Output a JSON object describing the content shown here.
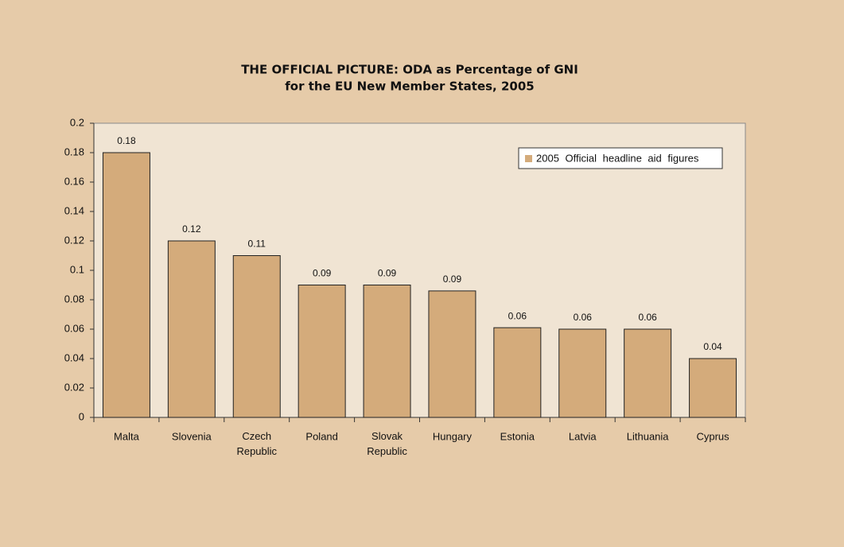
{
  "chart_data": {
    "type": "bar",
    "title": [
      "THE OFFICIAL PICTURE: ODA as Percentage of GNI",
      "for the EU New Member States, 2005"
    ],
    "categories": [
      "Malta",
      "Slovenia",
      "Czech Republic",
      "Poland",
      "Slovak Republic",
      "Hungary",
      "Estonia",
      "Latvia",
      "Lithuania",
      "Cyprus"
    ],
    "series": [
      {
        "name": "2005 Official headline aid figures",
        "color": "#d4ab7b",
        "values": [
          0.18,
          0.12,
          0.11,
          0.09,
          0.09,
          0.086,
          0.061,
          0.06,
          0.06,
          0.04
        ],
        "value_labels": [
          "0.18",
          "0.12",
          "0.11",
          "0.09",
          "0.09",
          "0.09",
          "0.06",
          "0.06",
          "0.06",
          "0.04"
        ]
      }
    ],
    "ylim": [
      0,
      0.2
    ],
    "yticks": [
      0,
      0.02,
      0.04,
      0.06,
      0.08,
      0.1,
      0.12,
      0.14,
      0.16,
      0.18,
      0.2
    ],
    "grid": false,
    "legend": "upper right"
  }
}
